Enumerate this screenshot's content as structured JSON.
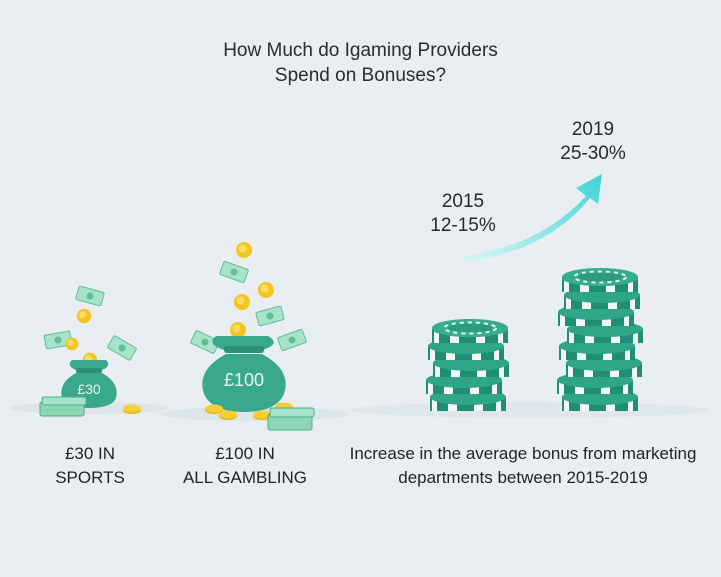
{
  "title": {
    "line1": "How Much do Igaming Providers",
    "line2": "Spend on Bonuses?"
  },
  "bags": [
    {
      "amount": "£30",
      "caption_line1": "£30 IN",
      "caption_line2": "SPORTS"
    },
    {
      "amount": "£100",
      "caption_line1": "£100 IN",
      "caption_line2": "ALL GAMBLING"
    }
  ],
  "trend": {
    "start": {
      "year": "2015",
      "range": "12-15%"
    },
    "end": {
      "year": "2019",
      "range": "25-30%"
    }
  },
  "chips_caption": {
    "line1": "Increase in the average bonus from marketing",
    "line2": "departments between 2015-2019"
  },
  "colors": {
    "chip": "#2fa58a",
    "chip_dark": "#1f8a72",
    "bag": "#3aa88c",
    "coin": "#f2c21b",
    "cash": "#8fd6b7",
    "arrow_start": "#bff3ee",
    "arrow_end": "#40d4d6",
    "background": "#e9eef2"
  },
  "icons": [
    "money-bag-icon",
    "coin-icon",
    "banknote-icon",
    "casino-chip-stack-icon",
    "trend-arrow-icon"
  ]
}
